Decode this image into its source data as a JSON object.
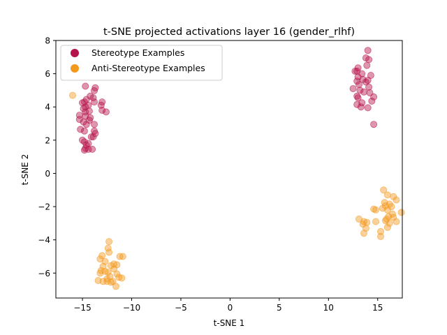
{
  "chart_data": {
    "type": "scatter",
    "title": "t-SNE projected activations layer 16 (gender_rlhf)",
    "xlabel": "t-SNE 1",
    "ylabel": "t-SNE 2",
    "xlim": [
      -17.7,
      17.5
    ],
    "ylim": [
      -7.5,
      8.0
    ],
    "xticks": [
      -15,
      -10,
      -5,
      0,
      5,
      10,
      15
    ],
    "yticks": [
      -6,
      -4,
      -2,
      0,
      2,
      4,
      6,
      8
    ],
    "grid": false,
    "legend_position": "top-left",
    "series": [
      {
        "name": "Stereotype Examples",
        "color": "#b5134b",
        "points": [
          [
            -14.7,
            5.25
          ],
          [
            -13.7,
            5.15
          ],
          [
            -13.8,
            4.98
          ],
          [
            -14.2,
            4.65
          ],
          [
            -13.9,
            4.55
          ],
          [
            -14.6,
            4.45
          ],
          [
            -14.8,
            4.3
          ],
          [
            -15.0,
            4.25
          ],
          [
            -13.0,
            4.3
          ],
          [
            -13.1,
            4.1
          ],
          [
            -14.4,
            4.1
          ],
          [
            -13.8,
            4.3
          ],
          [
            -14.7,
            4.0
          ],
          [
            -14.9,
            3.9
          ],
          [
            -13.0,
            3.8
          ],
          [
            -14.7,
            3.7
          ],
          [
            -14.3,
            3.75
          ],
          [
            -12.6,
            3.7
          ],
          [
            -15.3,
            3.5
          ],
          [
            -14.7,
            3.45
          ],
          [
            -14.2,
            3.35
          ],
          [
            -15.3,
            3.25
          ],
          [
            -14.9,
            3.1
          ],
          [
            -14.3,
            3.2
          ],
          [
            -14.6,
            2.95
          ],
          [
            -13.8,
            2.95
          ],
          [
            -15.2,
            2.65
          ],
          [
            -14.8,
            2.55
          ],
          [
            -13.8,
            2.55
          ],
          [
            -13.7,
            2.4
          ],
          [
            -13.9,
            2.2
          ],
          [
            -14.1,
            2.2
          ],
          [
            -15.0,
            2.0
          ],
          [
            -14.8,
            1.9
          ],
          [
            -14.6,
            1.7
          ],
          [
            -14.4,
            1.8
          ],
          [
            -14.7,
            1.5
          ],
          [
            -14.4,
            1.45
          ],
          [
            -14.8,
            1.4
          ],
          [
            -14.0,
            1.45
          ],
          [
            14.0,
            7.4
          ],
          [
            13.8,
            6.95
          ],
          [
            14.1,
            6.85
          ],
          [
            13.9,
            6.5
          ],
          [
            13.0,
            6.35
          ],
          [
            12.9,
            6.15
          ],
          [
            12.7,
            6.15
          ],
          [
            13.4,
            6.0
          ],
          [
            14.3,
            5.9
          ],
          [
            13.0,
            5.8
          ],
          [
            13.5,
            5.65
          ],
          [
            14.0,
            5.6
          ],
          [
            13.8,
            5.5
          ],
          [
            12.9,
            5.55
          ],
          [
            13.1,
            5.35
          ],
          [
            12.5,
            5.1
          ],
          [
            14.1,
            5.2
          ],
          [
            13.2,
            5.0
          ],
          [
            13.6,
            4.9
          ],
          [
            14.2,
            4.85
          ],
          [
            12.9,
            4.65
          ],
          [
            13.0,
            4.55
          ],
          [
            14.6,
            4.6
          ],
          [
            14.4,
            4.35
          ],
          [
            13.4,
            4.25
          ],
          [
            12.9,
            4.15
          ],
          [
            13.3,
            4.0
          ],
          [
            14.0,
            3.95
          ],
          [
            14.6,
            2.95
          ]
        ]
      },
      {
        "name": "Anti-Stereotype Examples",
        "color": "#f39a1e",
        "points": [
          [
            -16.0,
            4.7
          ],
          [
            -12.3,
            -4.1
          ],
          [
            -12.4,
            -4.5
          ],
          [
            -12.3,
            -4.75
          ],
          [
            -13.0,
            -4.95
          ],
          [
            -13.2,
            -5.15
          ],
          [
            -12.7,
            -5.3
          ],
          [
            -11.2,
            -5.0
          ],
          [
            -10.9,
            -5.0
          ],
          [
            -11.8,
            -5.45
          ],
          [
            -11.5,
            -5.5
          ],
          [
            -12.1,
            -5.55
          ],
          [
            -12.9,
            -5.6
          ],
          [
            -11.8,
            -5.75
          ],
          [
            -13.1,
            -5.85
          ],
          [
            -12.7,
            -5.9
          ],
          [
            -12.4,
            -5.95
          ],
          [
            -13.2,
            -6.0
          ],
          [
            -11.5,
            -6.05
          ],
          [
            -11.3,
            -6.25
          ],
          [
            -11.0,
            -6.3
          ],
          [
            -12.2,
            -6.2
          ],
          [
            -12.5,
            -6.35
          ],
          [
            -13.4,
            -6.45
          ],
          [
            -12.9,
            -6.5
          ],
          [
            -12.5,
            -6.5
          ],
          [
            -11.9,
            -6.5
          ],
          [
            -11.6,
            -6.8
          ],
          [
            -12.1,
            -6.55
          ],
          [
            15.6,
            -1.0
          ],
          [
            16.0,
            -1.3
          ],
          [
            16.6,
            -1.4
          ],
          [
            16.9,
            -1.6
          ],
          [
            15.7,
            -1.75
          ],
          [
            16.2,
            -1.85
          ],
          [
            15.8,
            -1.95
          ],
          [
            16.4,
            -2.0
          ],
          [
            15.5,
            -2.1
          ],
          [
            14.6,
            -2.15
          ],
          [
            14.8,
            -2.2
          ],
          [
            16.0,
            -2.2
          ],
          [
            17.4,
            -2.35
          ],
          [
            16.5,
            -2.45
          ],
          [
            16.1,
            -2.6
          ],
          [
            16.6,
            -2.65
          ],
          [
            15.9,
            -2.75
          ],
          [
            15.8,
            -2.85
          ],
          [
            13.6,
            -2.9
          ],
          [
            13.1,
            -2.75
          ],
          [
            14.8,
            -2.9
          ],
          [
            16.9,
            -2.9
          ],
          [
            13.9,
            -2.95
          ],
          [
            16.2,
            -3.0
          ],
          [
            13.5,
            -3.05
          ],
          [
            16.0,
            -3.25
          ],
          [
            13.8,
            -3.3
          ],
          [
            15.3,
            -3.5
          ],
          [
            13.6,
            -3.6
          ],
          [
            15.3,
            -3.8
          ]
        ]
      }
    ]
  }
}
